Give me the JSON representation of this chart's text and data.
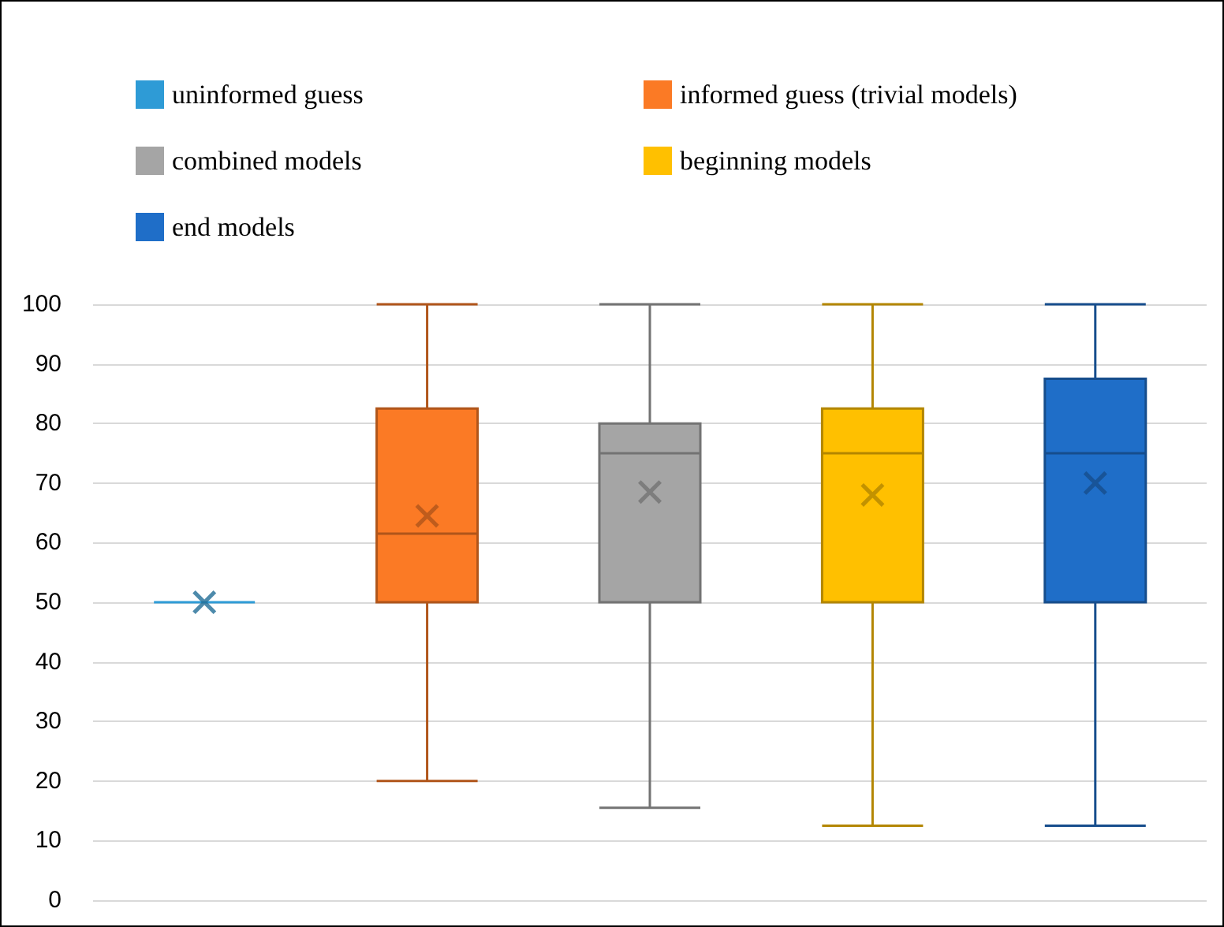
{
  "chart_data": {
    "type": "box",
    "categories": [
      null
    ],
    "series": [
      {
        "name": "uninformed guess",
        "color": "#2e9bd6",
        "boxes": [
          {
            "low": 50,
            "q1": 50,
            "median": 50,
            "q3": 50,
            "high": 50,
            "mean": 50
          }
        ]
      },
      {
        "name": "informed guess (trivial models)",
        "color": "#fb7a25",
        "boxes": [
          {
            "low": 20,
            "q1": 50,
            "median": 61.5,
            "q3": 82.5,
            "high": 100,
            "mean": 64.5
          }
        ]
      },
      {
        "name": "combined models",
        "color": "#a5a5a5",
        "boxes": [
          {
            "low": 15.5,
            "q1": 50,
            "median": 75,
            "q3": 80,
            "high": 100,
            "mean": 68.5
          }
        ]
      },
      {
        "name": "beginning models",
        "color": "#ffc000",
        "boxes": [
          {
            "low": 12.5,
            "q1": 50,
            "median": 75,
            "q3": 82.5,
            "high": 100,
            "mean": 68
          }
        ]
      },
      {
        "name": "end models",
        "color": "#1f6ec8",
        "boxes": [
          {
            "low": 12.5,
            "q1": 50,
            "median": 75,
            "q3": 87.5,
            "high": 100,
            "mean": 70
          }
        ]
      }
    ],
    "ylim": [
      0,
      100
    ],
    "yticks": [
      0,
      10,
      20,
      30,
      40,
      50,
      60,
      70,
      80,
      90,
      100
    ],
    "grid": "y",
    "legend": "top"
  }
}
